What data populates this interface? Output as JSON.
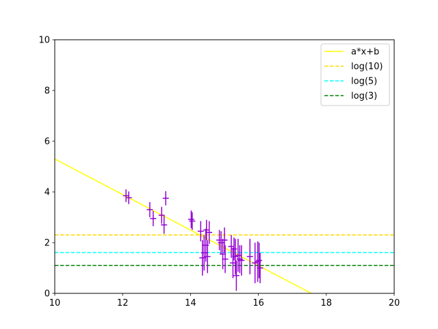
{
  "chart_data": {
    "type": "scatter",
    "title": "",
    "xlabel": "",
    "ylabel": "",
    "xlim": [
      10,
      20
    ],
    "ylim": [
      0,
      10
    ],
    "xticks": [
      "10",
      "12",
      "14",
      "16",
      "18",
      "20"
    ],
    "yticks": [
      "0",
      "2",
      "4",
      "6",
      "8",
      "10"
    ],
    "grid": false,
    "legend_position": "top-right",
    "fit_line": {
      "name": "a*x+b",
      "color": "#ffff00",
      "slope": -0.701,
      "intercept": 12.31
    },
    "hlines": [
      {
        "name": "log(10)",
        "y": 2.302585,
        "color": "#ffd700"
      },
      {
        "name": "log(5)",
        "y": 1.609438,
        "color": "#00ffff"
      },
      {
        "name": "log(3)",
        "y": 1.098612,
        "color": "#008000"
      }
    ],
    "points_color": "#9400d3",
    "points": [
      {
        "x": 12.1,
        "y": 3.85,
        "err": 0.25
      },
      {
        "x": 12.18,
        "y": 3.77,
        "err": 0.25
      },
      {
        "x": 12.8,
        "y": 3.3,
        "err": 0.3
      },
      {
        "x": 12.9,
        "y": 2.95,
        "err": 0.3
      },
      {
        "x": 13.15,
        "y": 3.08,
        "err": 0.33
      },
      {
        "x": 13.22,
        "y": 2.7,
        "err": 0.35
      },
      {
        "x": 13.27,
        "y": 3.75,
        "err": 0.28
      },
      {
        "x": 14.02,
        "y": 2.92,
        "err": 0.35
      },
      {
        "x": 14.05,
        "y": 2.85,
        "err": 0.35
      },
      {
        "x": 14.3,
        "y": 2.45,
        "err": 0.4
      },
      {
        "x": 14.35,
        "y": 1.4,
        "err": 0.7
      },
      {
        "x": 14.4,
        "y": 1.6,
        "err": 0.7
      },
      {
        "x": 14.45,
        "y": 1.9,
        "err": 0.65
      },
      {
        "x": 14.47,
        "y": 2.5,
        "err": 0.4
      },
      {
        "x": 14.5,
        "y": 1.45,
        "err": 0.65
      },
      {
        "x": 14.55,
        "y": 2.4,
        "err": 0.45
      },
      {
        "x": 14.85,
        "y": 2.1,
        "err": 0.4
      },
      {
        "x": 14.9,
        "y": 2.0,
        "err": 0.45
      },
      {
        "x": 14.95,
        "y": 1.55,
        "err": 0.6
      },
      {
        "x": 15.0,
        "y": 2.1,
        "err": 0.5
      },
      {
        "x": 15.02,
        "y": 1.35,
        "err": 0.55
      },
      {
        "x": 15.2,
        "y": 1.85,
        "err": 0.45
      },
      {
        "x": 15.25,
        "y": 1.2,
        "err": 0.6
      },
      {
        "x": 15.28,
        "y": 1.75,
        "err": 0.45
      },
      {
        "x": 15.32,
        "y": 1.45,
        "err": 0.7
      },
      {
        "x": 15.35,
        "y": 0.7,
        "err": 0.6
      },
      {
        "x": 15.4,
        "y": 1.5,
        "err": 0.65
      },
      {
        "x": 15.45,
        "y": 1.35,
        "err": 0.55
      },
      {
        "x": 15.5,
        "y": 1.3,
        "err": 0.6
      },
      {
        "x": 15.75,
        "y": 1.45,
        "err": 0.7
      },
      {
        "x": 15.9,
        "y": 1.2,
        "err": 0.8
      },
      {
        "x": 15.98,
        "y": 1.25,
        "err": 0.8
      },
      {
        "x": 16.02,
        "y": 1.3,
        "err": 0.7
      },
      {
        "x": 16.05,
        "y": 1.0,
        "err": 0.6
      }
    ]
  }
}
